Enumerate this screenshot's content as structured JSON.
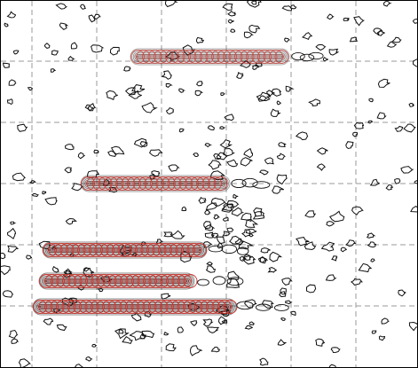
{
  "plot": {
    "background": "#ffffff",
    "frame_color": "#000000",
    "grid_color": "#9a9a9a",
    "contour_color": "#111111",
    "highlight_color": "#d0342c",
    "grid": true,
    "bands": [
      {
        "id": "band-1",
        "intensity": 0.55
      },
      {
        "id": "band-2",
        "intensity": 0.75
      },
      {
        "id": "band-3",
        "intensity": 1.0
      },
      {
        "id": "band-4",
        "intensity": 1.0
      },
      {
        "id": "band-5",
        "intensity": 1.0
      }
    ]
  }
}
